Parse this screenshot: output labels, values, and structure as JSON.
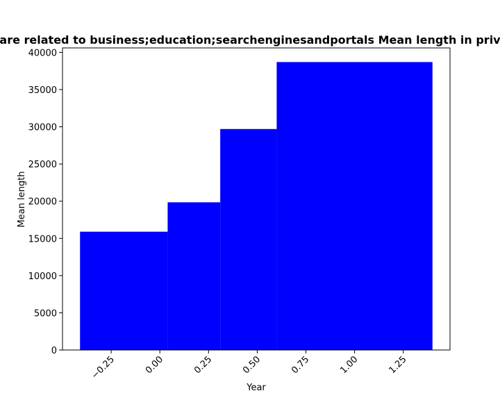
{
  "chart_data": {
    "type": "bar",
    "title": "are related to business;education;searchenginesandportals Mean length in priv",
    "xlabel": "Year",
    "ylabel": "Mean length",
    "bars": [
      {
        "x_start": -0.41,
        "x_end": 0.04,
        "value": 15900
      },
      {
        "x_start": 0.04,
        "x_end": 0.31,
        "value": 19850
      },
      {
        "x_start": 0.31,
        "x_end": 0.6,
        "value": 29700
      },
      {
        "x_start": 0.6,
        "x_end": 1.4,
        "value": 38700
      }
    ],
    "bar_color": "#0000ff",
    "xlim": [
      -0.5,
      1.49
    ],
    "ylim": [
      0,
      40600
    ],
    "x_ticks": [
      -0.25,
      0.0,
      0.25,
      0.5,
      0.75,
      1.0,
      1.25
    ],
    "x_tick_labels": [
      "−0.25",
      "0.00",
      "0.25",
      "0.50",
      "0.75",
      "1.00",
      "1.25"
    ],
    "y_ticks": [
      0,
      5000,
      10000,
      15000,
      20000,
      25000,
      30000,
      35000,
      40000
    ],
    "y_tick_labels": [
      "0",
      "5000",
      "10000",
      "15000",
      "20000",
      "25000",
      "30000",
      "35000",
      "40000"
    ],
    "grid": false,
    "legend": "none"
  }
}
